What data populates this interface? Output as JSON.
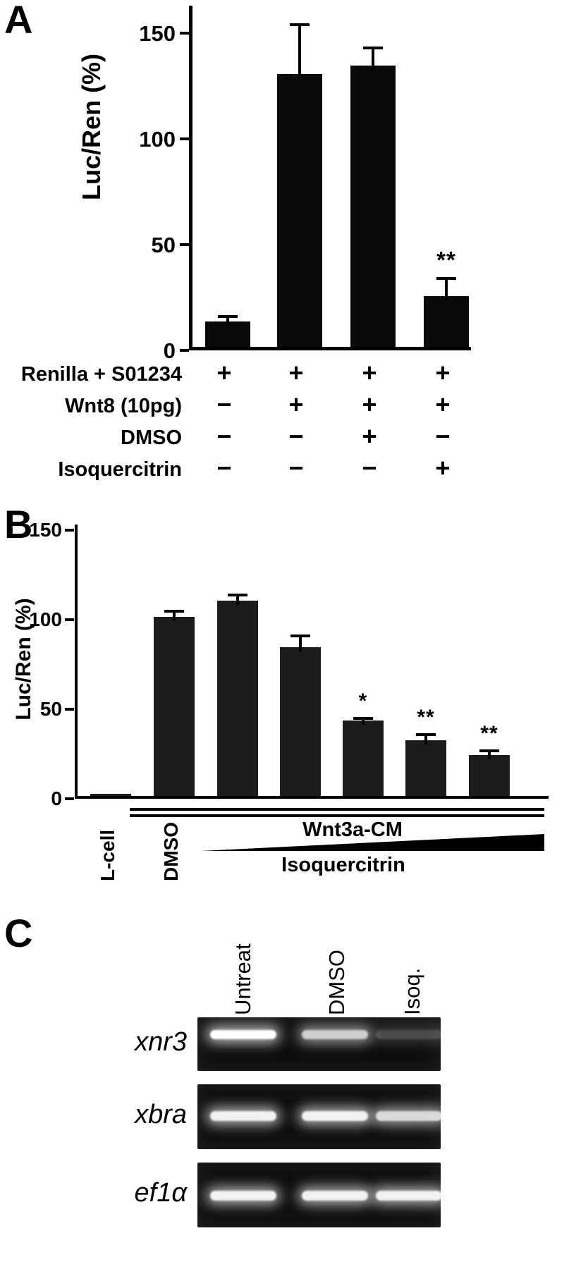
{
  "labels": {
    "panelA": "A",
    "panelB": "B",
    "panelC": "C"
  },
  "chart_data": [
    {
      "panel": "A",
      "type": "bar",
      "title": "",
      "ylabel": "Luc/Ren (%)",
      "ylim": [
        0,
        160
      ],
      "yticks": [
        0,
        50,
        100,
        150
      ],
      "bars": [
        {
          "value": 12,
          "error": 3,
          "sig": ""
        },
        {
          "value": 129,
          "error": 24,
          "sig": ""
        },
        {
          "value": 133,
          "error": 9,
          "sig": ""
        },
        {
          "value": 24,
          "error": 9,
          "sig": "**"
        }
      ],
      "conditions": [
        {
          "label": "Renilla + S01234",
          "values": [
            "+",
            "+",
            "+",
            "+"
          ]
        },
        {
          "label": "Wnt8 (10pg)",
          "values": [
            "−",
            "+",
            "+",
            "+"
          ]
        },
        {
          "label": "DMSO",
          "values": [
            "−",
            "−",
            "+",
            "−"
          ]
        },
        {
          "label": "Isoquercitrin",
          "values": [
            "−",
            "−",
            "−",
            "+"
          ]
        }
      ]
    },
    {
      "panel": "B",
      "type": "bar",
      "title": "",
      "ylabel": "Luc/Ren (%)",
      "ylim": [
        0,
        150
      ],
      "yticks": [
        0,
        50,
        100,
        150
      ],
      "bars": [
        {
          "label": "L-cell",
          "value": 1,
          "error": 0,
          "sig": ""
        },
        {
          "label": "DMSO",
          "value": 100,
          "error": 4,
          "sig": ""
        },
        {
          "label": "",
          "value": 109,
          "error": 4,
          "sig": ""
        },
        {
          "label": "",
          "value": 83,
          "error": 7,
          "sig": ""
        },
        {
          "label": "",
          "value": 42,
          "error": 2,
          "sig": "*"
        },
        {
          "label": "",
          "value": 31,
          "error": 4,
          "sig": "**"
        },
        {
          "label": "",
          "value": 23,
          "error": 3,
          "sig": "**"
        }
      ],
      "group_label": "Wnt3a-CM",
      "gradient_label": "Isoquercitrin"
    },
    {
      "panel": "C",
      "type": "gel",
      "columns": [
        "Untreat",
        "DMSO",
        "Isoq."
      ],
      "rows": [
        {
          "gene": "xnr3",
          "bands": [
            1.0,
            0.8,
            0.25
          ]
        },
        {
          "gene": "xbra",
          "bands": [
            0.95,
            0.95,
            0.85
          ]
        },
        {
          "gene": "ef1α",
          "bands": [
            0.95,
            0.95,
            0.95
          ]
        }
      ]
    }
  ]
}
